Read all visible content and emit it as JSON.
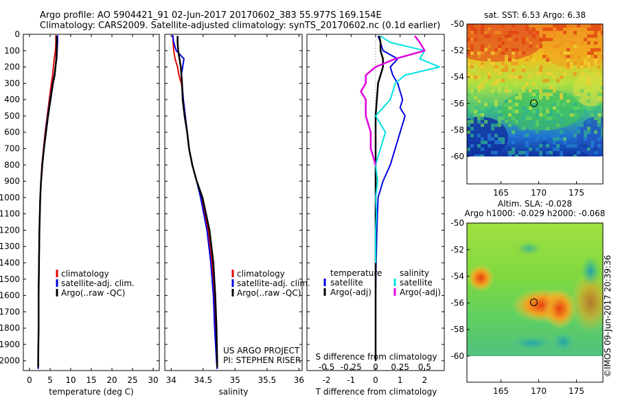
{
  "header": {
    "line1": "Argo profile: AO 5904421_91 02-Jun-2017 20170602_383 55.977S 169.154E",
    "line2": "Climatology: CARS2009. Satellite-adjusted climatology: synTS_20170602.nc (0.1d earlier)"
  },
  "side_label": "©IMOS 09-Jun-2017 20:39:36",
  "colors": {
    "climatology": "#e00000",
    "satellite": "#0000e0",
    "argo": "#000000",
    "satellite_diff": "#00e0e0",
    "argo_diff_sal": "#e000e0"
  },
  "chart_data": [
    {
      "type": "line",
      "title": "",
      "xlabel": "temperature (deg C)",
      "ylabel": "",
      "xlim": [
        -1.5,
        31.5
      ],
      "ylim": [
        0,
        2060
      ],
      "y_reversed": true,
      "xticks": [
        0,
        5,
        10,
        15,
        20,
        25,
        30
      ],
      "xtick_labels": [
        "0",
        "5",
        "10",
        "15",
        "20",
        "25",
        "30"
      ],
      "yticks": [
        0,
        100,
        200,
        300,
        400,
        500,
        600,
        700,
        800,
        900,
        1000,
        1100,
        1200,
        1300,
        1400,
        1500,
        1600,
        1700,
        1800,
        1900,
        2000
      ],
      "ytick_labels": [
        "0",
        "100",
        "200",
        "300",
        "400",
        "500",
        "600",
        "700",
        "800",
        "900",
        "1000",
        "1100",
        "1200",
        "1300",
        "1400",
        "1500",
        "1600",
        "1700",
        "1800",
        "1900",
        "2000"
      ],
      "legend": [
        "climatology",
        "satellite-adj. clim.",
        "Argo(..raw -QC)"
      ],
      "series": [
        {
          "name": "climatology",
          "y": [
            5,
            50,
            100,
            150,
            200,
            250,
            300,
            400,
            500,
            600,
            700,
            800,
            900,
            1000,
            1200,
            1400,
            1600,
            1800,
            2000,
            2050
          ],
          "values": [
            6.4,
            6.4,
            6.3,
            6.0,
            5.8,
            5.6,
            5.3,
            4.8,
            4.3,
            3.8,
            3.4,
            3.0,
            2.8,
            2.6,
            2.4,
            2.3,
            2.2,
            2.2,
            2.1,
            2.1
          ]
        },
        {
          "name": "satellite-adj. clim.",
          "y": [
            5,
            50,
            100,
            150,
            200,
            250,
            300,
            400,
            500,
            600,
            700,
            800,
            900,
            1000,
            1200,
            1400,
            1600,
            1800,
            2000,
            2050
          ],
          "values": [
            6.8,
            6.8,
            6.7,
            6.6,
            6.3,
            6.0,
            5.6,
            5.0,
            4.4,
            3.9,
            3.5,
            3.1,
            2.8,
            2.6,
            2.4,
            2.3,
            2.2,
            2.2,
            2.1,
            2.1
          ]
        },
        {
          "name": "Argo(..raw -QC)",
          "y": [
            10,
            50,
            100,
            150,
            200,
            250,
            300,
            400,
            500,
            600,
            700,
            800,
            900,
            1000,
            1200,
            1400,
            1600,
            1800,
            2000,
            2040
          ],
          "values": [
            6.6,
            6.6,
            6.6,
            6.5,
            6.3,
            6.1,
            5.7,
            5.1,
            4.5,
            4.0,
            3.5,
            3.1,
            2.8,
            2.6,
            2.4,
            2.3,
            2.2,
            2.2,
            2.1,
            2.1
          ]
        }
      ]
    },
    {
      "type": "line",
      "title": "",
      "xlabel": "salinity",
      "ylabel": "",
      "xlim": [
        33.9,
        36.05
      ],
      "ylim": [
        0,
        2060
      ],
      "y_reversed": true,
      "xticks": [
        34,
        34.5,
        35,
        35.5,
        36
      ],
      "xtick_labels": [
        "34",
        "34.5",
        "35",
        "35.5",
        "36"
      ],
      "legend": [
        "climatology",
        "satellite-adj. clim.",
        "Argo(..raw -QC)"
      ],
      "annotation": [
        "US ARGO PROJECT",
        "PI: STEPHEN RISER"
      ],
      "series": [
        {
          "name": "climatology",
          "y": [
            5,
            50,
            100,
            150,
            200,
            250,
            300,
            400,
            500,
            600,
            700,
            800,
            900,
            1000,
            1200,
            1400,
            1600,
            1800,
            2000,
            2050
          ],
          "values": [
            34.03,
            34.03,
            34.04,
            34.06,
            34.1,
            34.12,
            34.16,
            34.19,
            34.22,
            34.25,
            34.28,
            34.33,
            34.4,
            34.47,
            34.58,
            34.64,
            34.68,
            34.7,
            34.72,
            34.72
          ]
        },
        {
          "name": "satellite-adj. clim.",
          "y": [
            5,
            50,
            100,
            150,
            200,
            250,
            300,
            400,
            500,
            600,
            700,
            800,
            900,
            1000,
            1200,
            1400,
            1600,
            1800,
            2000,
            2050
          ],
          "values": [
            34.02,
            34.04,
            34.08,
            34.2,
            34.18,
            34.16,
            34.17,
            34.19,
            34.22,
            34.25,
            34.28,
            34.33,
            34.4,
            34.46,
            34.56,
            34.62,
            34.66,
            34.68,
            34.71,
            34.72
          ]
        },
        {
          "name": "Argo(..raw -QC)",
          "y": [
            10,
            50,
            100,
            150,
            200,
            250,
            300,
            400,
            500,
            600,
            700,
            800,
            900,
            1000,
            1200,
            1400,
            1600,
            1800,
            2000,
            2040
          ],
          "values": [
            34.1,
            34.1,
            34.11,
            34.13,
            34.15,
            34.16,
            34.17,
            34.18,
            34.21,
            34.25,
            34.28,
            34.33,
            34.4,
            34.49,
            34.6,
            34.66,
            34.69,
            34.71,
            34.72,
            34.72
          ]
        }
      ]
    },
    {
      "type": "line",
      "title": "",
      "xlabel": "T difference from climatology",
      "xlabel_top": "S difference from climatology",
      "xlim": [
        -2.8,
        2.8
      ],
      "ylim": [
        0,
        2060
      ],
      "y_reversed": true,
      "xticks": [
        -2,
        -1,
        0,
        1,
        2
      ],
      "xtick_labels": [
        "-2",
        "-1",
        "0",
        "1",
        "2"
      ],
      "sticks": [
        -2,
        -1,
        0,
        1,
        2
      ],
      "stick_labels": [
        "-0.5",
        "-0.25",
        "0",
        "0.25",
        "0.5"
      ],
      "legend_temperature": {
        "heading": "temperature",
        "items": [
          "satellite",
          "Argo(-adj)"
        ]
      },
      "legend_salinity": {
        "heading": "salinity",
        "items": [
          "satellite",
          "Argo(-adj)"
        ]
      },
      "series": [
        {
          "name": "temperature satellite",
          "y": [
            10,
            50,
            100,
            150,
            200,
            250,
            300,
            350,
            400,
            450,
            500,
            600,
            700,
            800,
            900,
            1000,
            1200,
            1400,
            1600,
            1800,
            2000
          ],
          "values": [
            0.1,
            0.2,
            0.3,
            0.9,
            0.6,
            0.7,
            0.9,
            1.0,
            1.1,
            1.0,
            1.2,
            1.0,
            0.8,
            0.6,
            0.3,
            0.1,
            0.05,
            0.02,
            0.0,
            0.0,
            0.0
          ]
        },
        {
          "name": "temperature Argo(-adj)",
          "y": [
            10,
            50,
            100,
            150,
            200,
            300,
            400,
            500,
            700,
            900,
            1100,
            1300,
            1500,
            1700,
            1900,
            2000
          ],
          "values": [
            0.15,
            0.2,
            0.2,
            0.3,
            0.3,
            0.1,
            0.05,
            0.0,
            0.0,
            0.0,
            0.0,
            0.0,
            0.0,
            0.0,
            0.0,
            0.0
          ]
        },
        {
          "name": "salinity satellite",
          "y": [
            10,
            50,
            100,
            150,
            200,
            250,
            300,
            400,
            500,
            600,
            700,
            800,
            900,
            1000,
            1100,
            1200,
            1400
          ],
          "values": [
            0.05,
            0.15,
            0.5,
            0.45,
            0.65,
            0.3,
            0.2,
            0.15,
            0.0,
            0.1,
            0.05,
            0.0,
            0.02,
            0.0,
            0.01,
            0.0,
            0.0
          ]
        },
        {
          "name": "salinity Argo(-adj)",
          "y": [
            10,
            50,
            100,
            150,
            200,
            250,
            300,
            350,
            400,
            500,
            600,
            700,
            800
          ],
          "values": [
            0.4,
            0.45,
            0.5,
            0.2,
            0.0,
            -0.1,
            -0.1,
            -0.15,
            -0.1,
            -0.1,
            -0.05,
            -0.05,
            0.0
          ]
        }
      ]
    },
    {
      "type": "heatmap",
      "title": "sat. SST: 6.53 Argo: 6.38",
      "xlim": [
        160.5,
        178.5
      ],
      "ylim": [
        -60,
        -50
      ],
      "xticks": [
        165,
        170,
        175
      ],
      "xtick_labels": [
        "165",
        "170",
        "175"
      ],
      "yticks": [
        -50,
        -52,
        -54,
        -56,
        -58,
        -60
      ],
      "ytick_labels": [
        "-50",
        "-52",
        "-54",
        "-56",
        "-58",
        "-60"
      ],
      "profile_position": [
        169.154,
        -55.977
      ]
    },
    {
      "type": "heatmap",
      "title": "Altim. SLA: -0.028",
      "subtitle": "Argo h1000: -0.029 h2000: -0.068",
      "xlim": [
        160.5,
        178.5
      ],
      "ylim": [
        -60,
        -50
      ],
      "xticks": [
        165,
        170,
        175
      ],
      "xtick_labels": [
        "165",
        "170",
        "175"
      ],
      "yticks": [
        -50,
        -52,
        -54,
        -56,
        -58,
        -60
      ],
      "ytick_labels": [
        "-50",
        "-52",
        "-54",
        "-56",
        "-58",
        "-60"
      ],
      "profile_position": [
        169.154,
        -55.977
      ]
    }
  ]
}
